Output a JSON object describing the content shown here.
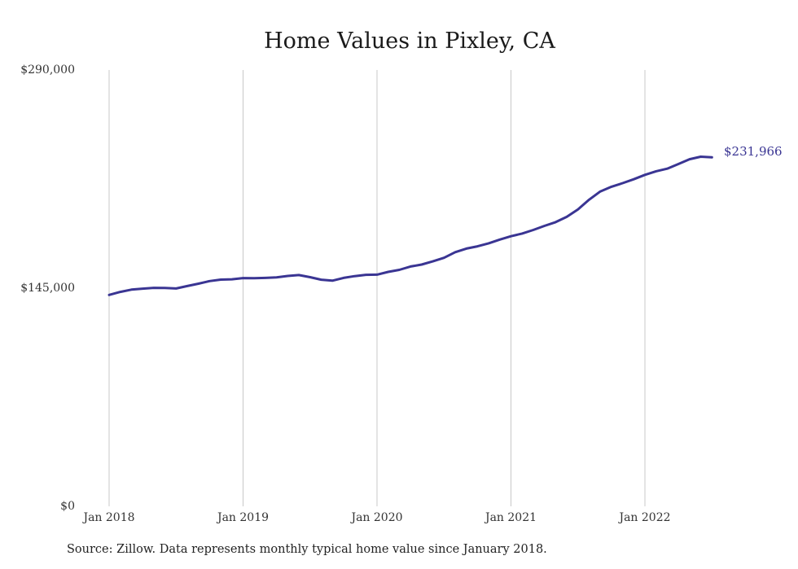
{
  "chart_data": {
    "type": "line",
    "title": "Home Values in Pixley, CA",
    "xlabel": "",
    "ylabel": "",
    "ylim": [
      0,
      290000
    ],
    "y_ticks": [
      "$0",
      "$145,000",
      "$290,000"
    ],
    "y_tick_values": [
      0,
      145000,
      290000
    ],
    "x_ticks": [
      "Jan 2018",
      "Jan 2019",
      "Jan 2020",
      "Jan 2021",
      "Jan 2022"
    ],
    "x_tick_values": [
      "2018-01",
      "2019-01",
      "2020-01",
      "2021-01",
      "2022-01"
    ],
    "grid": "vertical",
    "end_label": "$231,966",
    "line_color": "#3a3593",
    "series": [
      {
        "x": [
          "2018-01",
          "2018-02",
          "2018-03",
          "2018-04",
          "2018-05",
          "2018-06",
          "2018-07",
          "2018-08",
          "2018-09",
          "2018-10",
          "2018-11",
          "2018-12",
          "2019-01",
          "2019-02",
          "2019-03",
          "2019-04",
          "2019-05",
          "2019-06",
          "2019-07",
          "2019-08",
          "2019-09",
          "2019-10",
          "2019-11",
          "2019-12",
          "2020-01",
          "2020-02",
          "2020-03",
          "2020-04",
          "2020-05",
          "2020-06",
          "2020-07",
          "2020-08",
          "2020-09",
          "2020-10",
          "2020-11",
          "2020-12",
          "2021-01",
          "2021-02",
          "2021-03",
          "2021-04",
          "2021-05",
          "2021-06",
          "2021-07",
          "2021-08",
          "2021-09",
          "2021-10",
          "2021-11",
          "2021-12",
          "2022-01",
          "2022-02",
          "2022-03",
          "2022-04",
          "2022-05",
          "2022-06",
          "2022-07"
        ],
        "values": [
          140500,
          142500,
          144000,
          144700,
          145200,
          145100,
          144800,
          146400,
          148000,
          149700,
          150700,
          150900,
          151700,
          151600,
          151800,
          152200,
          153100,
          153700,
          152300,
          150600,
          150000,
          151800,
          153000,
          153900,
          154000,
          155800,
          157200,
          159400,
          160700,
          162800,
          165200,
          168900,
          171300,
          172800,
          174800,
          177300,
          179500,
          181300,
          183700,
          186400,
          188900,
          192400,
          197400,
          203800,
          209300,
          212400,
          214800,
          217400,
          220300,
          222700,
          224400,
          227500,
          230700,
          232400,
          231966
        ]
      }
    ]
  },
  "source_note": "Source: Zillow. Data represents monthly typical home value since January 2018."
}
